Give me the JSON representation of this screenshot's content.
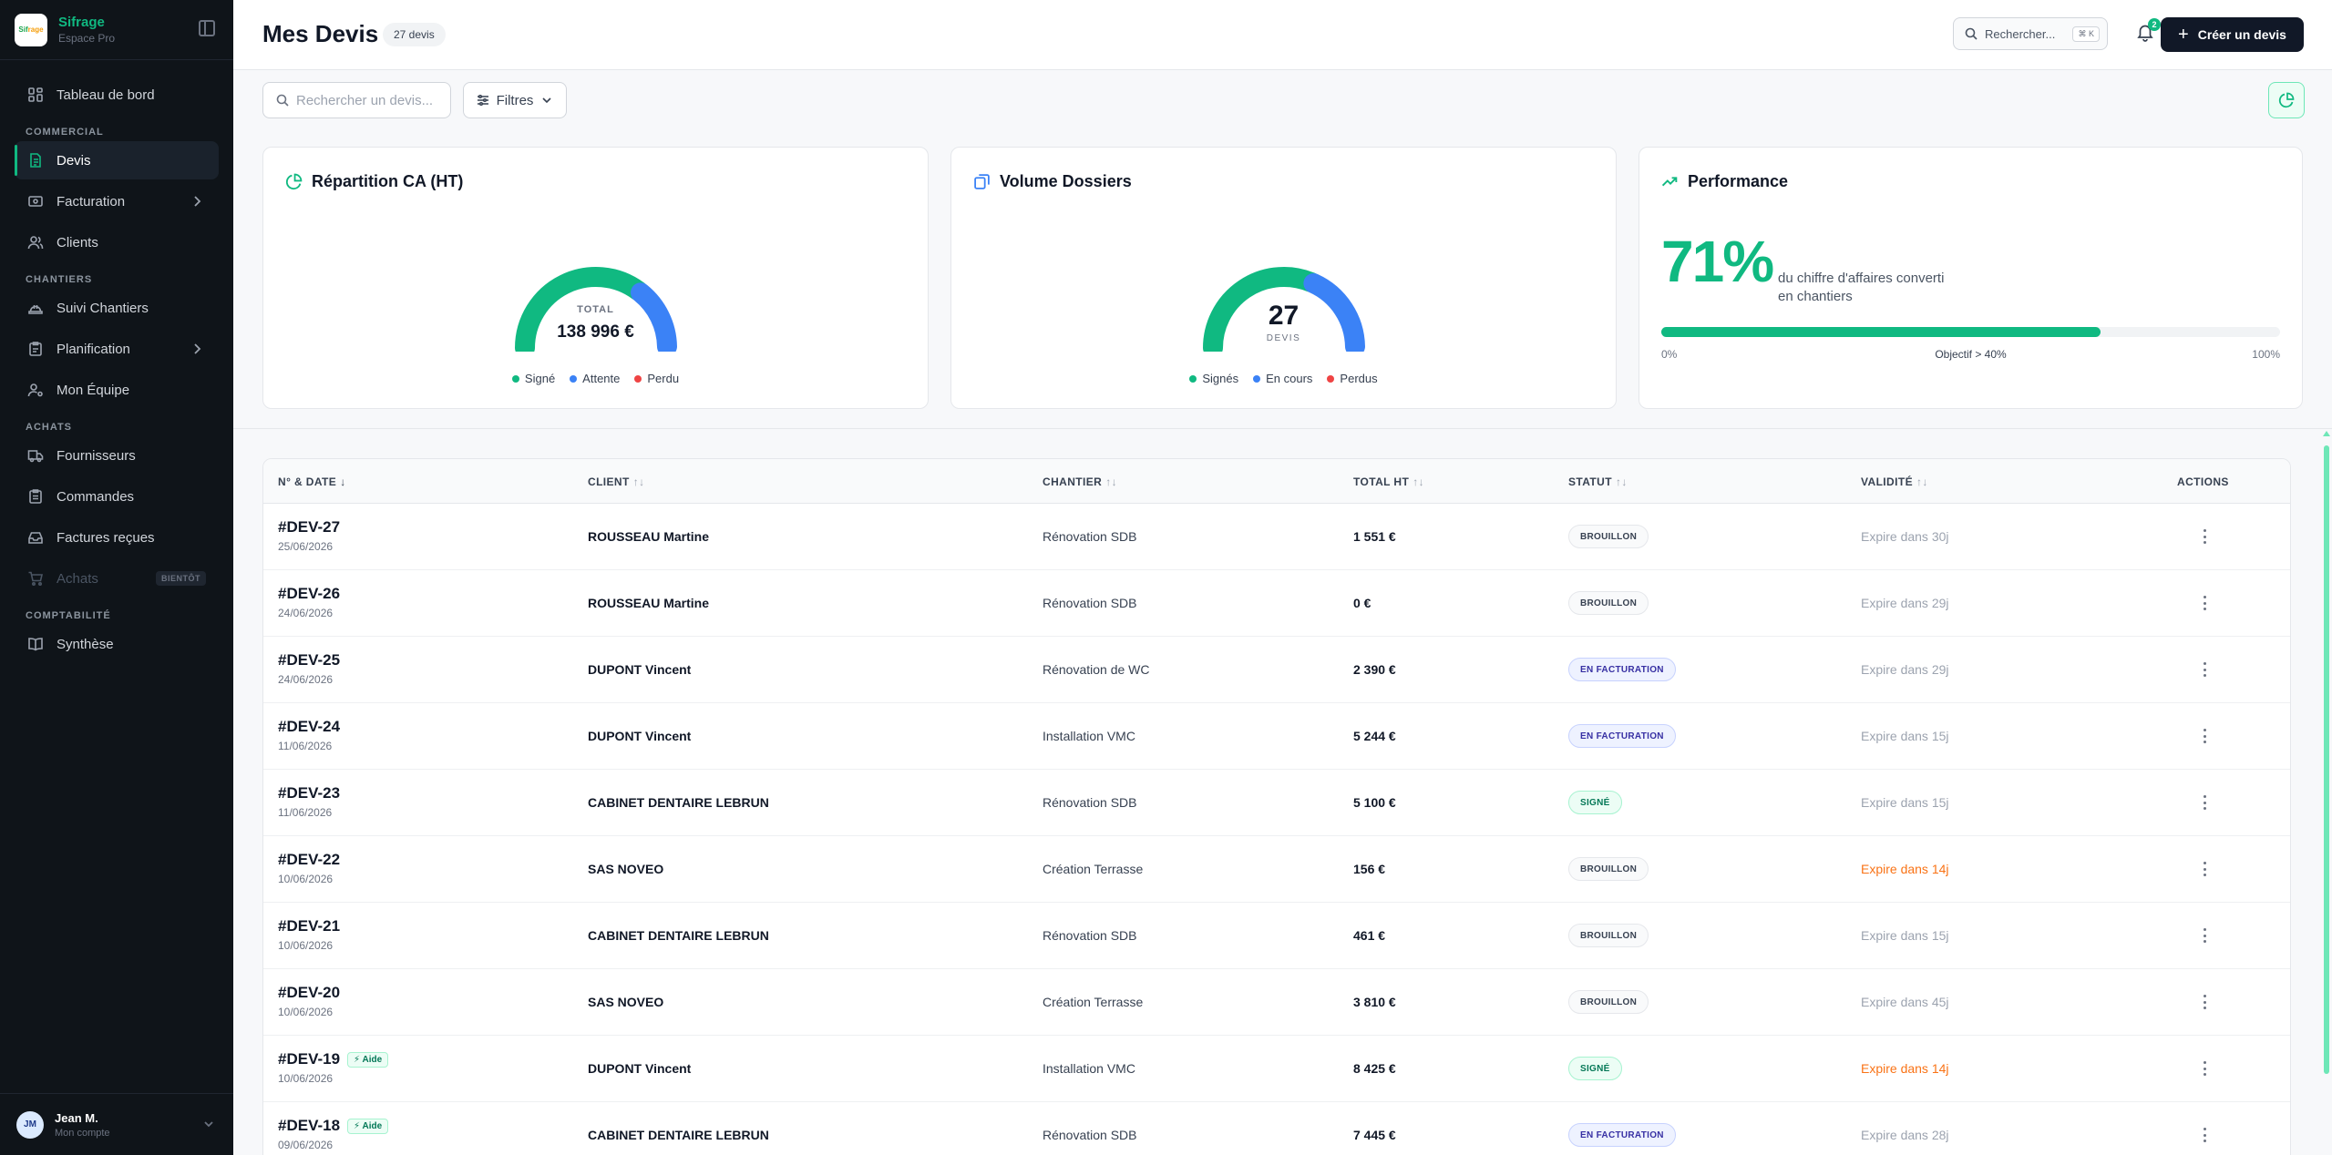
{
  "brand": {
    "name": "Sifrage",
    "sub": "Espace Pro",
    "logo_text_a": "Sif",
    "logo_text_b": "rage"
  },
  "sidebar": {
    "items": [
      {
        "label": "Tableau de bord"
      },
      {
        "section": "COMMERCIAL"
      },
      {
        "label": "Devis"
      },
      {
        "label": "Facturation"
      },
      {
        "label": "Clients"
      },
      {
        "section": "CHANTIERS"
      },
      {
        "label": "Suivi Chantiers"
      },
      {
        "label": "Planification"
      },
      {
        "label": "Mon Équipe"
      },
      {
        "section": "ACHATS"
      },
      {
        "label": "Fournisseurs"
      },
      {
        "label": "Commandes"
      },
      {
        "label": "Factures reçues"
      },
      {
        "label": "Achats",
        "badge": "BIENTÔT"
      },
      {
        "section": "COMPTABILITÉ"
      },
      {
        "label": "Synthèse"
      }
    ]
  },
  "account": {
    "initials": "JM",
    "name": "Jean M.",
    "sub": "Mon compte"
  },
  "header": {
    "title": "Mes Devis",
    "count": "27 devis",
    "search_label": "Rechercher...",
    "search_kbd": "⌘ K",
    "notifications": "2",
    "create_label": "Créer un devis"
  },
  "toolbar": {
    "search_placeholder": "Rechercher un devis...",
    "filter_label": "Filtres"
  },
  "cards": {
    "ca": {
      "title": "Répartition CA (HT)",
      "center_label": "TOTAL",
      "center_value": "138 996 €",
      "legend": [
        "Signé",
        "Attente",
        "Perdu"
      ]
    },
    "volume": {
      "title": "Volume Dossiers",
      "center_value": "27",
      "center_unit": "DEVIS",
      "legend": [
        "Signés",
        "En cours",
        "Perdus"
      ]
    },
    "perf": {
      "title": "Performance",
      "pct": "71%",
      "desc": "du chiffre d'affaires converti en chantiers",
      "scale_min": "0%",
      "objective": "Objectif > 40%",
      "scale_max": "100%",
      "fill_fraction": 0.71
    }
  },
  "colors": {
    "accent": "#10b981",
    "blue": "#3b82f6",
    "red": "#ef4444",
    "dark": "#111827"
  },
  "chart_data": [
    {
      "type": "pie",
      "title": "Répartition CA (HT)",
      "categories": [
        "Signé",
        "Attente",
        "Perdu"
      ],
      "values": [
        0.71,
        0.29,
        0.0
      ]
    },
    {
      "type": "pie",
      "title": "Volume Dossiers",
      "categories": [
        "Signés",
        "En cours",
        "Perdus"
      ],
      "values": [
        0.63,
        0.37,
        0.0
      ]
    }
  ],
  "table": {
    "headers": {
      "num": "N° & DATE",
      "client": "CLIENT",
      "site": "CHANTIER",
      "total": "TOTAL HT",
      "status": "STATUT",
      "validity": "VALIDITÉ",
      "actions": "ACTIONS"
    },
    "sort_desc": "↓",
    "sort_both": "↑↓",
    "rows": [
      {
        "num": "#DEV-27",
        "date": "25/06/2026",
        "client": "ROUSSEAU Martine",
        "site": "Rénovation SDB",
        "total": "1 551 €",
        "status": "BROUILLON",
        "status_kind": "draft",
        "validity": "Expire dans 30j",
        "warn": false
      },
      {
        "num": "#DEV-26",
        "date": "24/06/2026",
        "client": "ROUSSEAU Martine",
        "site": "Rénovation SDB",
        "total": "0 €",
        "status": "BROUILLON",
        "status_kind": "draft",
        "validity": "Expire dans 29j",
        "warn": false
      },
      {
        "num": "#DEV-25",
        "date": "24/06/2026",
        "client": "DUPONT Vincent",
        "site": "Rénovation de WC",
        "total": "2 390 €",
        "status": "EN FACTURATION",
        "status_kind": "billing",
        "validity": "Expire dans 29j",
        "warn": false
      },
      {
        "num": "#DEV-24",
        "date": "11/06/2026",
        "client": "DUPONT Vincent",
        "site": "Installation VMC",
        "total": "5 244 €",
        "status": "EN FACTURATION",
        "status_kind": "billing",
        "validity": "Expire dans 15j",
        "warn": false
      },
      {
        "num": "#DEV-23",
        "date": "11/06/2026",
        "client": "CABINET DENTAIRE LEBRUN",
        "site": "Rénovation SDB",
        "total": "5 100 €",
        "status": "SIGNÉ",
        "status_kind": "signed",
        "validity": "Expire dans 15j",
        "warn": false
      },
      {
        "num": "#DEV-22",
        "date": "10/06/2026",
        "client": "SAS NOVEO",
        "site": "Création Terrasse",
        "total": "156 €",
        "status": "BROUILLON",
        "status_kind": "draft",
        "validity": "Expire dans 14j",
        "warn": true
      },
      {
        "num": "#DEV-21",
        "date": "10/06/2026",
        "client": "CABINET DENTAIRE LEBRUN",
        "site": "Rénovation SDB",
        "total": "461 €",
        "status": "BROUILLON",
        "status_kind": "draft",
        "validity": "Expire dans 15j",
        "warn": false
      },
      {
        "num": "#DEV-20",
        "date": "10/06/2026",
        "client": "SAS NOVEO",
        "site": "Création Terrasse",
        "total": "3 810 €",
        "status": "BROUILLON",
        "status_kind": "draft",
        "validity": "Expire dans 45j",
        "warn": false
      },
      {
        "num": "#DEV-19",
        "date": "10/06/2026",
        "aide": "Aide",
        "client": "DUPONT Vincent",
        "site": "Installation VMC",
        "total": "8 425 €",
        "status": "SIGNÉ",
        "status_kind": "signed",
        "validity": "Expire dans 14j",
        "warn": true
      },
      {
        "num": "#DEV-18",
        "date": "09/06/2026",
        "aide": "Aide",
        "client": "CABINET DENTAIRE LEBRUN",
        "site": "Rénovation SDB",
        "total": "7 445 €",
        "status": "EN FACTURATION",
        "status_kind": "billing",
        "validity": "Expire dans 28j",
        "warn": false
      }
    ]
  }
}
